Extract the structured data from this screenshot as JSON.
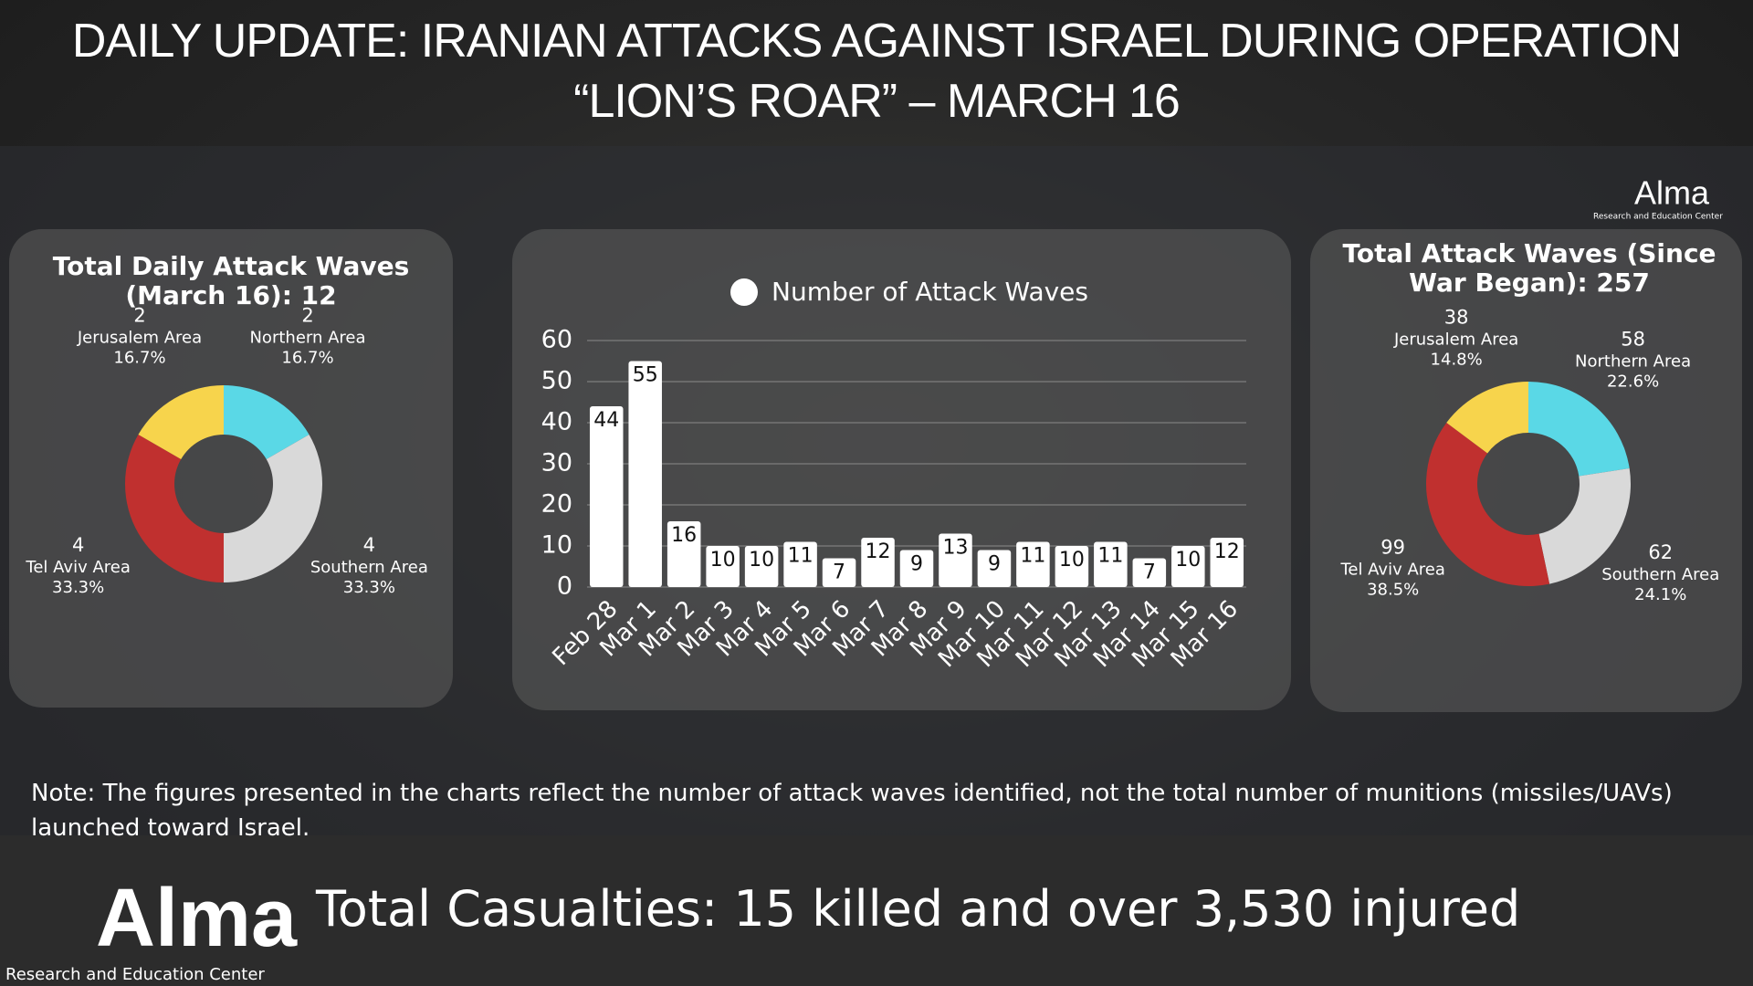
{
  "header": {
    "title": "DAILY UPDATE: IRANIAN ATTACKS AGAINST ISRAEL DURING OPERATION “LION’S ROAR” – MARCH 16"
  },
  "logo": {
    "name": "Alma",
    "subtitle": "Research and Education Center"
  },
  "chart_data": [
    {
      "type": "pie",
      "title": "Total Daily Attack Waves (March 16): 12",
      "categories": [
        "Northern Area",
        "Southern Area",
        "Tel Aviv Area",
        "Jerusalem Area"
      ],
      "values": [
        2,
        4,
        4,
        2
      ],
      "percentage_labels": [
        "16.7%",
        "33.3%",
        "33.3%",
        "16.7%"
      ],
      "colors": [
        "#5ad8e6",
        "#d9d9d9",
        "#c0302f",
        "#f7d44c"
      ]
    },
    {
      "type": "bar",
      "legend": "Number of Attack Waves",
      "color": "#ffffff",
      "categories": [
        "Feb 28",
        "Mar 1",
        "Mar 2",
        "Mar 3",
        "Mar 4",
        "Mar 5",
        "Mar 6",
        "Mar 7",
        "Mar 8",
        "Mar 9",
        "Mar 10",
        "Mar 11",
        "Mar 12",
        "Mar 13",
        "Mar 14",
        "Mar 15",
        "Mar 16"
      ],
      "values": [
        44,
        55,
        16,
        10,
        10,
        11,
        7,
        12,
        9,
        13,
        9,
        11,
        10,
        11,
        7,
        10,
        12
      ],
      "ylim": [
        0,
        60
      ],
      "yticks": [
        0,
        10,
        20,
        30,
        40,
        50,
        60
      ],
      "grid": true
    },
    {
      "type": "pie",
      "title": "Total Attack Waves (Since War Began): 257",
      "categories": [
        "Northern Area",
        "Southern Area",
        "Tel Aviv Area",
        "Jerusalem Area"
      ],
      "values": [
        58,
        62,
        99,
        38
      ],
      "percentage_labels": [
        "22.6%",
        "24.1%",
        "38.5%",
        "14.8%"
      ],
      "colors": [
        "#5ad8e6",
        "#d9d9d9",
        "#c0302f",
        "#f7d44c"
      ]
    }
  ],
  "note": "Note: The figures presented in the charts reflect the number of attack waves identified, not the total number of munitions (missiles/UAVs) launched toward Israel.",
  "casualties": "Total Casualties: 15 killed and over 3,530 injured"
}
